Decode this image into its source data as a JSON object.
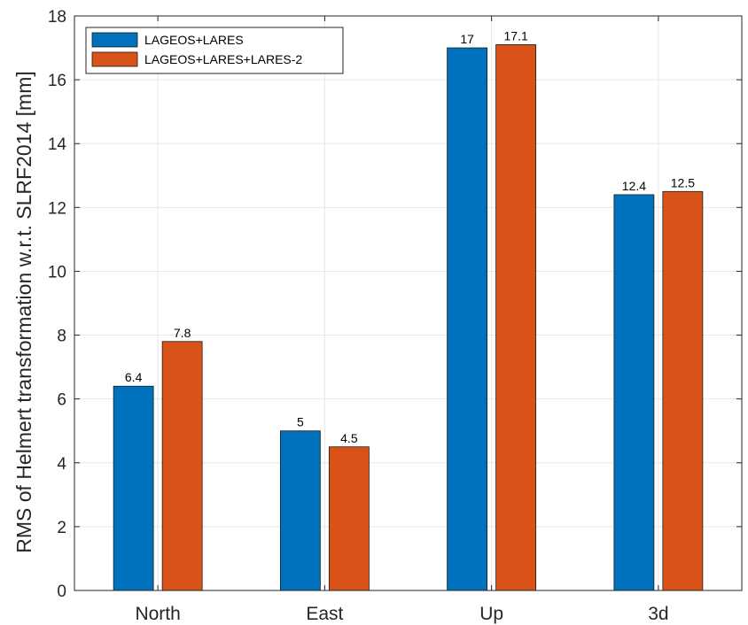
{
  "chart_data": {
    "type": "bar",
    "categories": [
      "North",
      "East",
      "Up",
      "3d"
    ],
    "series": [
      {
        "name": "LAGEOS+LARES",
        "color": "#0072BD",
        "values": [
          6.4,
          5,
          17,
          12.4
        ]
      },
      {
        "name": "LAGEOS+LARES+LARES-2",
        "color": "#D95319",
        "values": [
          7.8,
          4.5,
          17.1,
          12.5
        ]
      }
    ],
    "data_labels": [
      [
        "6.4",
        "5",
        "17",
        "12.4"
      ],
      [
        "7.8",
        "4.5",
        "17.1",
        "12.5"
      ]
    ],
    "ylabel": "RMS of Helmert transformation w.r.t. SLRF2014 [mm]",
    "ylim": [
      0,
      18
    ],
    "yticks": [
      "0",
      "2",
      "4",
      "6",
      "8",
      "10",
      "12",
      "14",
      "16",
      "18"
    ],
    "grid": true,
    "legend_position": "top-left"
  }
}
